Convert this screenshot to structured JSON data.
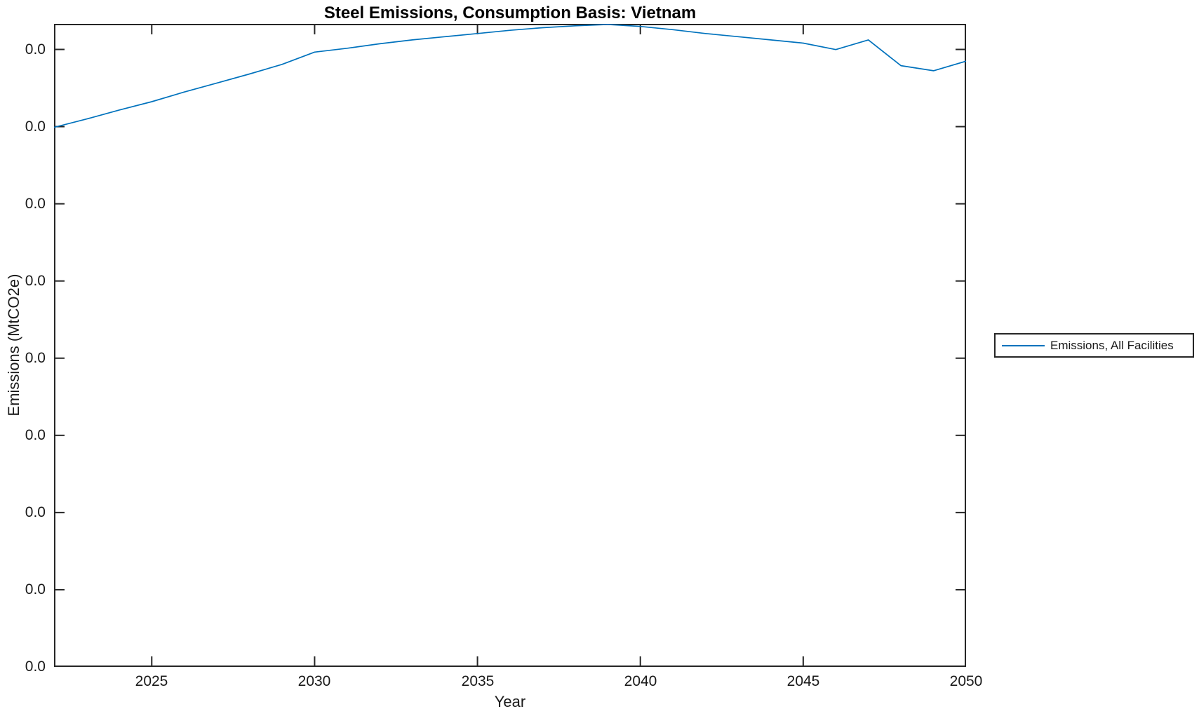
{
  "chart_data": {
    "type": "line",
    "title": "Steel Emissions, Consumption Basis: Vietnam",
    "xlabel": "Year",
    "ylabel": "Emissions (MtCO2e)",
    "x_range": [
      2022,
      2050
    ],
    "xticks": [
      2025,
      2030,
      2035,
      2040,
      2045,
      2050
    ],
    "xtick_labels": [
      "2025",
      "2030",
      "2035",
      "2040",
      "2045",
      "2050"
    ],
    "ytick_labels": [
      "0.0",
      "0.0",
      "0.0",
      "0.0",
      "0.0",
      "0.0",
      "0.0",
      "0.0",
      "0.0"
    ],
    "ytick_note": "Nine evenly spaced y-axis ticks; every label reads 0.0 (magnitudes below one-decimal precision).",
    "grid": false,
    "legend": {
      "position": "outside-right",
      "entries": [
        {
          "label": "Emissions, All Facilities",
          "color": "#0072BD"
        }
      ]
    },
    "series": [
      {
        "name": "Emissions, All Facilities",
        "color": "#0072BD",
        "x": [
          2022,
          2023,
          2024,
          2025,
          2026,
          2027,
          2028,
          2029,
          2030,
          2031,
          2032,
          2033,
          2034,
          2035,
          2036,
          2037,
          2038,
          2039,
          2040,
          2041,
          2042,
          2043,
          2044,
          2045,
          2046,
          2047,
          2048,
          2049,
          2050
        ],
        "y_axis_fraction": [
          0.839,
          0.852,
          0.866,
          0.879,
          0.894,
          0.908,
          0.922,
          0.937,
          0.956,
          0.962,
          0.969,
          0.975,
          0.98,
          0.985,
          0.99,
          0.994,
          0.997,
          0.999,
          0.996,
          0.991,
          0.985,
          0.98,
          0.975,
          0.97,
          0.96,
          0.975,
          0.935,
          0.927,
          0.942
        ],
        "y_note": "Values are fractions of the full y-axis height (0 = bottom axis, 1 = top edge); absolute values are not resolvable because all y tick labels display 0.0."
      }
    ],
    "peak_year": 2039
  },
  "colors": {
    "line": "#0072BD",
    "axis": "#262626",
    "text": "#1a1a1a",
    "background": "#ffffff"
  }
}
